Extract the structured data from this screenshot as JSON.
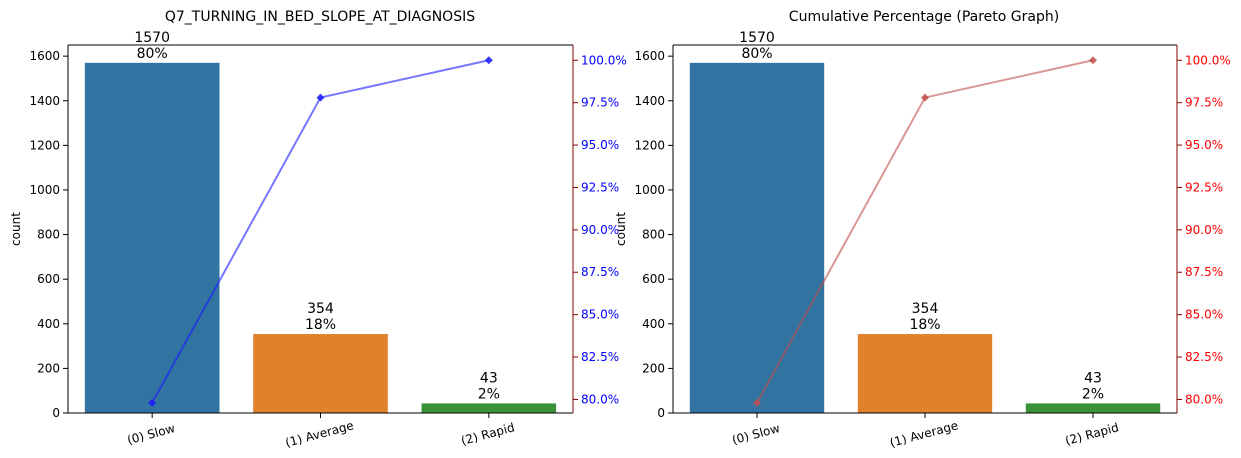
{
  "chart_data": [
    {
      "type": "bar",
      "title": "Q7_TURNING_IN_BED_SLOPE_AT_DIAGNOSIS",
      "ylabel": "count",
      "categories": [
        "(0) Slow",
        "(1) Average",
        "(2) Rapid"
      ],
      "values": [
        1570,
        354,
        43
      ],
      "bar_labels": [
        "1570\n80%",
        "354\n18%",
        "43\n2%"
      ],
      "bar_colors": [
        "#3274a1",
        "#e1812c",
        "#3a923a"
      ],
      "ylim": [
        0,
        1650
      ],
      "yticks": [
        0,
        200,
        400,
        600,
        800,
        1000,
        1200,
        1400,
        1600
      ],
      "line": {
        "values": [
          79.8,
          97.8,
          100.0
        ],
        "color": "#1a1aff",
        "axis_color": "#0000ff",
        "ylim": [
          79.2,
          100.9
        ],
        "ticks": [
          80.0,
          82.5,
          85.0,
          87.5,
          90.0,
          92.5,
          95.0,
          97.5,
          100.0
        ],
        "tick_labels": [
          "80.0%",
          "82.5%",
          "85.0%",
          "87.5%",
          "90.0%",
          "92.5%",
          "95.0%",
          "97.5%",
          "100.0%"
        ]
      },
      "right_spine_color": "#8b0000",
      "grid": false
    },
    {
      "type": "bar",
      "title": "Cumulative Percentage (Pareto Graph)",
      "ylabel": "count",
      "categories": [
        "(0) Slow",
        "(1) Average",
        "(2) Rapid"
      ],
      "values": [
        1570,
        354,
        43
      ],
      "bar_labels": [
        "1570\n80%",
        "354\n18%",
        "43\n2%"
      ],
      "bar_colors": [
        "#3274a1",
        "#e1812c",
        "#3a923a"
      ],
      "ylim": [
        0,
        1650
      ],
      "yticks": [
        0,
        200,
        400,
        600,
        800,
        1000,
        1200,
        1400,
        1600
      ],
      "line": {
        "values": [
          79.8,
          97.8,
          100.0
        ],
        "color": "#c0504d",
        "axis_color": "#ff0000",
        "ylim": [
          79.2,
          100.9
        ],
        "ticks": [
          80.0,
          82.5,
          85.0,
          87.5,
          90.0,
          92.5,
          95.0,
          97.5,
          100.0
        ],
        "tick_labels": [
          "80.0%",
          "82.5%",
          "85.0%",
          "87.5%",
          "90.0%",
          "92.5%",
          "95.0%",
          "97.5%",
          "100.0%"
        ]
      },
      "right_spine_color": "#8b0000",
      "grid": false
    }
  ]
}
